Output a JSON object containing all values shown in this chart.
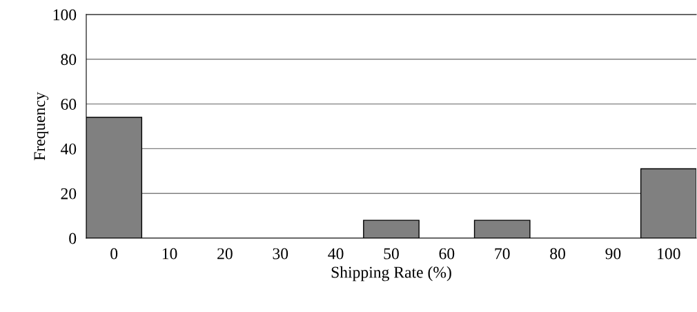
{
  "chart_data": {
    "type": "bar",
    "xlabel": "Shipping Rate (%)",
    "ylabel": "Frequency",
    "categories": [
      "0",
      "10",
      "20",
      "30",
      "40",
      "50",
      "60",
      "70",
      "80",
      "90",
      "100"
    ],
    "values": [
      54,
      0,
      0,
      0,
      0,
      8,
      0,
      8,
      0,
      0,
      31
    ],
    "color": "#808080",
    "ylim": [
      0,
      100
    ],
    "yticks": [
      0,
      20,
      40,
      60,
      80,
      100
    ],
    "grid": "y",
    "legend": false
  }
}
